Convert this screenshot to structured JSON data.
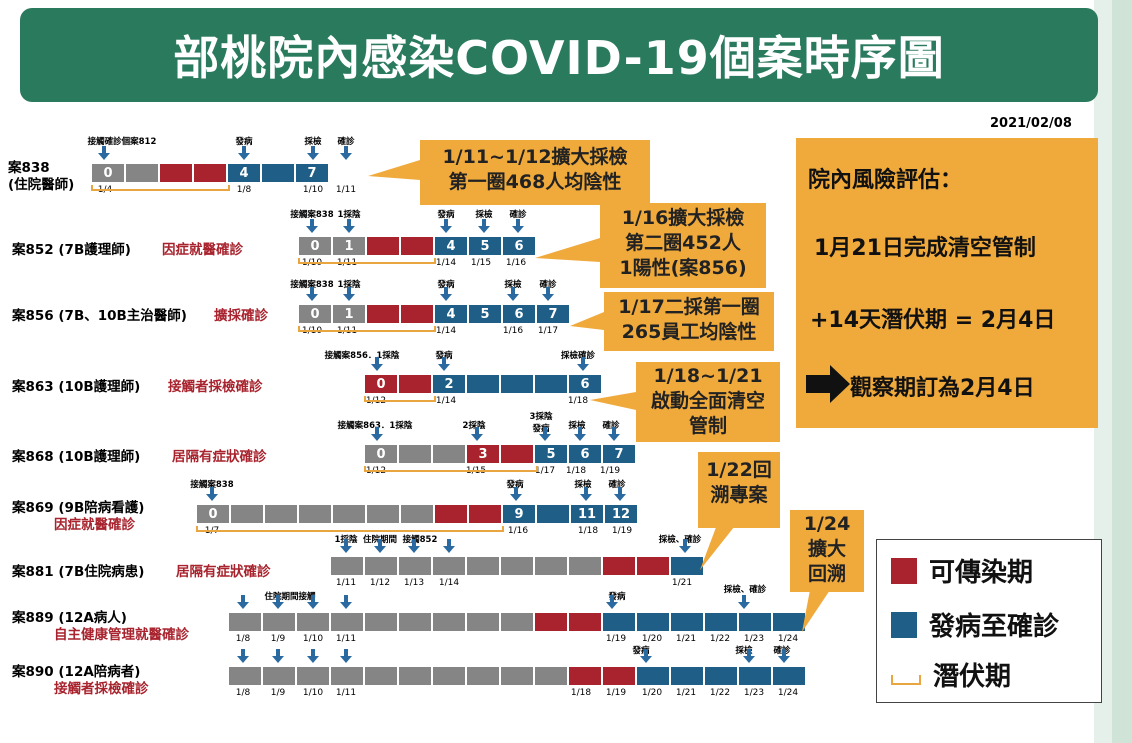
{
  "title": "部桃院內感染COVID-19個案時序圖",
  "report_date": "2021/02/08",
  "colors": {
    "contagious": "#a8232d",
    "onset_to_confirm": "#1f5e86",
    "incubation": "#e8a540",
    "neutral": "#858585",
    "banner": "#2a7a5e",
    "callout": "#f0aa3c"
  },
  "cases": [
    {
      "id": "838",
      "label": "案838",
      "label2": "(住院醫師)",
      "reason": "",
      "cells": [
        {
          "c": "g",
          "t": "0"
        },
        {
          "c": "g",
          "t": ""
        },
        {
          "c": "r",
          "t": ""
        },
        {
          "c": "r",
          "t": ""
        },
        {
          "c": "b",
          "t": "4"
        },
        {
          "c": "b",
          "t": ""
        },
        {
          "c": "b",
          "t": "7"
        }
      ],
      "events": [
        "接觸確診個案812",
        "發病",
        "採檢",
        "確診"
      ],
      "dates": [
        "1/4",
        "1/8",
        "1/10",
        "1/11"
      ]
    },
    {
      "id": "852",
      "label": "案852 (7B護理師)",
      "reason": "因症就醫確診",
      "cells": [
        {
          "c": "g",
          "t": "0"
        },
        {
          "c": "g",
          "t": "1"
        },
        {
          "c": "r",
          "t": ""
        },
        {
          "c": "r",
          "t": ""
        },
        {
          "c": "b",
          "t": "4"
        },
        {
          "c": "b",
          "t": "5"
        },
        {
          "c": "b",
          "t": "6"
        }
      ],
      "events": [
        "接觸案838",
        "1採陰",
        "發病",
        "採檢",
        "確診"
      ],
      "dates": [
        "1/10",
        "1/11",
        "1/14",
        "1/15",
        "1/16"
      ]
    },
    {
      "id": "856",
      "label": "案856 (7B、10B主治醫師)",
      "reason": "擴採確診",
      "cells": [
        {
          "c": "g",
          "t": "0"
        },
        {
          "c": "g",
          "t": "1"
        },
        {
          "c": "r",
          "t": ""
        },
        {
          "c": "r",
          "t": ""
        },
        {
          "c": "b",
          "t": "4"
        },
        {
          "c": "b",
          "t": "5"
        },
        {
          "c": "b",
          "t": "6"
        },
        {
          "c": "b",
          "t": "7"
        }
      ],
      "events": [
        "接觸案838",
        "1採陰",
        "發病",
        "採檢",
        "確診"
      ],
      "dates": [
        "1/10",
        "1/11",
        "1/14",
        "1/16",
        "1/17"
      ]
    },
    {
      "id": "863",
      "label": "案863 (10B護理師)",
      "reason": "接觸者採檢確診",
      "cells": [
        {
          "c": "r",
          "t": "0"
        },
        {
          "c": "r",
          "t": ""
        },
        {
          "c": "b",
          "t": "2"
        },
        {
          "c": "b",
          "t": ""
        },
        {
          "c": "b",
          "t": ""
        },
        {
          "c": "b",
          "t": ""
        },
        {
          "c": "b",
          "t": "6"
        }
      ],
      "events": [
        "接觸案856．1採陰",
        "發病",
        "採檢確診"
      ],
      "dates": [
        "1/12",
        "1/14",
        "1/18"
      ]
    },
    {
      "id": "868",
      "label": "案868 (10B護理師)",
      "reason": "居隔有症狀確診",
      "cells": [
        {
          "c": "g",
          "t": "0"
        },
        {
          "c": "g",
          "t": ""
        },
        {
          "c": "g",
          "t": ""
        },
        {
          "c": "r",
          "t": "3"
        },
        {
          "c": "r",
          "t": ""
        },
        {
          "c": "b",
          "t": "5"
        },
        {
          "c": "b",
          "t": "6"
        },
        {
          "c": "b",
          "t": "7"
        }
      ],
      "events": [
        "接觸案863．1採陰",
        "2採陰",
        "3採陰",
        "發病",
        "採檢",
        "確診"
      ],
      "dates": [
        "1/12",
        "1/15",
        "1/17",
        "1/18",
        "1/19"
      ]
    },
    {
      "id": "869",
      "label": "案869 (9B陪病看護)",
      "reason": "因症就醫確診",
      "cells": [
        {
          "c": "g",
          "t": "0"
        },
        {
          "c": "g",
          "t": ""
        },
        {
          "c": "g",
          "t": ""
        },
        {
          "c": "g",
          "t": ""
        },
        {
          "c": "g",
          "t": ""
        },
        {
          "c": "g",
          "t": ""
        },
        {
          "c": "g",
          "t": ""
        },
        {
          "c": "r",
          "t": ""
        },
        {
          "c": "r",
          "t": ""
        },
        {
          "c": "b",
          "t": "9"
        },
        {
          "c": "b",
          "t": ""
        },
        {
          "c": "b",
          "t": "11"
        },
        {
          "c": "b",
          "t": "12"
        }
      ],
      "events": [
        "接觸案838",
        "發病",
        "採檢",
        "確診"
      ],
      "dates": [
        "1/7",
        "1/16",
        "1/18",
        "1/19"
      ]
    },
    {
      "id": "881",
      "label": "案881 (7B住院病患)",
      "reason": "居隔有症狀確診",
      "cells": [
        {
          "c": "g",
          "t": ""
        },
        {
          "c": "g",
          "t": ""
        },
        {
          "c": "g",
          "t": ""
        },
        {
          "c": "g",
          "t": ""
        },
        {
          "c": "g",
          "t": ""
        },
        {
          "c": "g",
          "t": ""
        },
        {
          "c": "g",
          "t": ""
        },
        {
          "c": "g",
          "t": ""
        },
        {
          "c": "r",
          "t": ""
        },
        {
          "c": "r",
          "t": ""
        },
        {
          "c": "b",
          "t": ""
        }
      ],
      "events": [
        "1採陰",
        "住院期間",
        "接觸852",
        "採檢、確診"
      ],
      "dates": [
        "1/11",
        "1/12",
        "1/13",
        "1/14",
        "1/21"
      ]
    },
    {
      "id": "889",
      "label": "案889 (12A病人)",
      "reason": "自主健康管理就醫確診",
      "cells": [
        {
          "c": "g",
          "t": ""
        },
        {
          "c": "g",
          "t": ""
        },
        {
          "c": "g",
          "t": ""
        },
        {
          "c": "g",
          "t": ""
        },
        {
          "c": "g",
          "t": ""
        },
        {
          "c": "g",
          "t": ""
        },
        {
          "c": "g",
          "t": ""
        },
        {
          "c": "g",
          "t": ""
        },
        {
          "c": "g",
          "t": ""
        },
        {
          "c": "r",
          "t": ""
        },
        {
          "c": "r",
          "t": ""
        },
        {
          "c": "b",
          "t": ""
        },
        {
          "c": "b",
          "t": ""
        },
        {
          "c": "b",
          "t": ""
        },
        {
          "c": "b",
          "t": ""
        },
        {
          "c": "b",
          "t": ""
        },
        {
          "c": "b",
          "t": ""
        }
      ],
      "events": [
        "住院期間接觸",
        "發病",
        "採檢、確診"
      ],
      "dates": [
        "1/8",
        "1/9",
        "1/10",
        "1/11",
        "1/19",
        "1/20",
        "1/21",
        "1/22",
        "1/23",
        "1/24"
      ]
    },
    {
      "id": "890",
      "label": "案890 (12A陪病者)",
      "reason": "接觸者採檢確診",
      "cells": [
        {
          "c": "g",
          "t": ""
        },
        {
          "c": "g",
          "t": ""
        },
        {
          "c": "g",
          "t": ""
        },
        {
          "c": "g",
          "t": ""
        },
        {
          "c": "g",
          "t": ""
        },
        {
          "c": "g",
          "t": ""
        },
        {
          "c": "g",
          "t": ""
        },
        {
          "c": "g",
          "t": ""
        },
        {
          "c": "g",
          "t": ""
        },
        {
          "c": "g",
          "t": ""
        },
        {
          "c": "r",
          "t": ""
        },
        {
          "c": "r",
          "t": ""
        },
        {
          "c": "b",
          "t": ""
        },
        {
          "c": "b",
          "t": ""
        },
        {
          "c": "b",
          "t": ""
        },
        {
          "c": "b",
          "t": ""
        },
        {
          "c": "b",
          "t": ""
        }
      ],
      "events": [
        "發病",
        "採檢",
        "確診"
      ],
      "dates": [
        "1/8",
        "1/9",
        "1/10",
        "1/11",
        "1/18",
        "1/19",
        "1/20",
        "1/21",
        "1/22",
        "1/23",
        "1/24"
      ]
    }
  ],
  "callouts": [
    {
      "text": "1/11~1/12擴大採檢\n第一圈468人均陰性"
    },
    {
      "text": "1/16擴大採檢\n第二圈452人\n1陽性(案856)"
    },
    {
      "text": "1/17二採第一圈\n265員工均陰性"
    },
    {
      "text": "1/18~1/21\n啟動全面清空\n管制"
    },
    {
      "text": "1/22回\n溯專案"
    },
    {
      "text": "1/24\n擴大\n回溯"
    }
  ],
  "risk": {
    "heading": "院內風險評估：",
    "line1": "1月21日完成清空管制",
    "line2": "+14天潛伏期 = 2月4日",
    "line3": "觀察期訂為2月4日"
  },
  "legend": {
    "contagious": "可傳染期",
    "onset_to_confirm": "發病至確診",
    "incubation": "潛伏期"
  }
}
